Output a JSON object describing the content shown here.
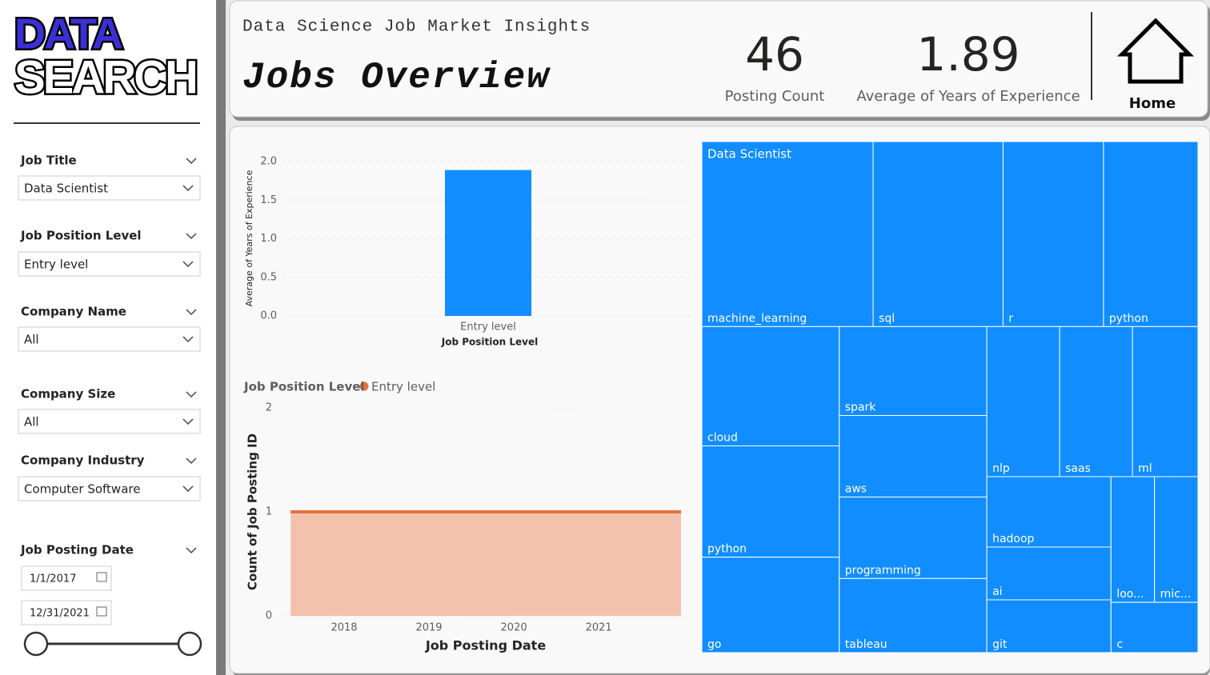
{
  "logo": {
    "line1": "DATA",
    "line2": "SEARCH"
  },
  "filters": [
    {
      "label": "Job Title",
      "value": "Data Scientist"
    },
    {
      "label": "Job Position Level",
      "value": "Entry level"
    },
    {
      "label": "Company Name",
      "value": "All"
    },
    {
      "label": "Company Size",
      "value": "All"
    },
    {
      "label": "Company Industry",
      "value": "Computer Software"
    }
  ],
  "date_filter": {
    "label": "Job Posting Date",
    "start": "1/1/2017",
    "end": "12/31/2021"
  },
  "header": {
    "subtitle": "Data Science Job Market Insights",
    "title": "Jobs Overview"
  },
  "kpis": [
    {
      "value": 46,
      "label": "Posting Count"
    },
    {
      "value": 1.89,
      "label": "Average of Years of Experience"
    }
  ],
  "home": "Home",
  "chart_data": [
    {
      "type": "bar",
      "categories": [
        "Entry level"
      ],
      "values": [
        1.89
      ],
      "color": "#118dff",
      "x_label": "Job Position Level",
      "y_label": "Average of Years of Experience",
      "ylim": [
        0,
        2
      ],
      "yticks": [
        {
          "value": 0,
          "label": "0.0"
        },
        0.5,
        {
          "value": 1,
          "label": "1.0"
        },
        1.5,
        {
          "value": 2,
          "label": "2.0"
        }
      ],
      "grid": true
    },
    {
      "type": "area",
      "legend_title": "Job Position Level",
      "x": [
        2017.37,
        2021.97
      ],
      "series": [
        {
          "name": "Entry level",
          "color": "#e8703a",
          "values": [
            1,
            1
          ]
        }
      ],
      "x_label": "Job Posting Date",
      "y_label": "Count of Job Posting ID",
      "xlim": [
        2017.37,
        2021.97
      ],
      "xticks": [
        2018,
        2019,
        2020,
        2021
      ],
      "ylim": [
        0,
        2
      ],
      "yticks": [
        0,
        1,
        2
      ],
      "grid": true
    },
    {
      "type": "treemap",
      "group": "Data Scientist",
      "color": "#118dff",
      "categories": [
        "machine_learning",
        "sql",
        "r",
        "python",
        "cloud",
        "python",
        "go",
        "spark",
        "aws",
        "programming",
        "tableau",
        "nlp",
        "saas",
        "ml",
        "hadoop",
        "ai",
        "git",
        "loo...",
        "mic...",
        "c"
      ],
      "values": [
        29,
        22,
        17,
        16,
        15,
        14,
        12,
        12,
        11,
        11,
        10,
        10,
        10,
        9,
        8,
        6,
        6,
        5,
        5,
        4
      ]
    }
  ]
}
